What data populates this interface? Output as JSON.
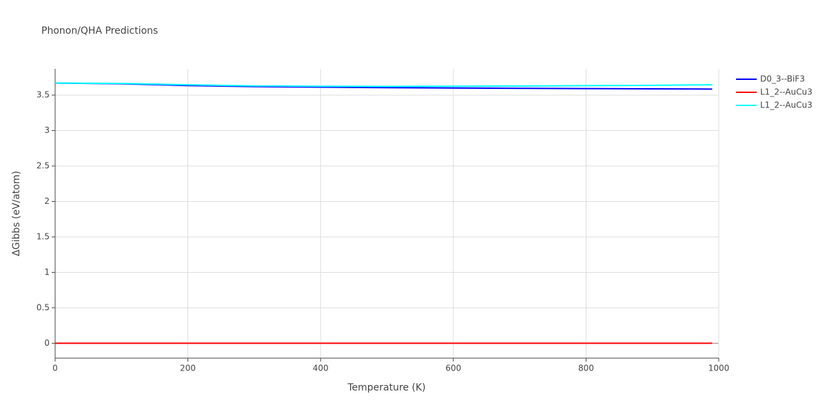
{
  "chart_data": {
    "type": "line",
    "title": "Phonon/QHA Predictions",
    "x_label": "Temperature (K)",
    "y_label": "ΔGibbs (eV/atom)",
    "x": [
      0,
      100,
      200,
      300,
      400,
      500,
      600,
      700,
      800,
      900,
      990
    ],
    "series": [
      {
        "name": "D0_3--BiF3",
        "color": "#0000ff",
        "values": [
          3.67,
          3.66,
          3.635,
          3.62,
          3.612,
          3.605,
          3.6,
          3.596,
          3.592,
          3.588,
          3.585
        ]
      },
      {
        "name": "L1_2--AuCu3",
        "color": "#ff0000",
        "values": [
          0,
          0,
          0,
          0,
          0,
          0,
          0,
          0,
          0,
          0,
          0
        ]
      },
      {
        "name": "L1_2--AuCu3",
        "color": "#00ffff",
        "values": [
          3.67,
          3.665,
          3.645,
          3.63,
          3.625,
          3.622,
          3.625,
          3.628,
          3.633,
          3.638,
          3.645
        ]
      }
    ],
    "xlim": [
      0,
      1000
    ],
    "xticks": [
      0,
      200,
      400,
      600,
      800,
      1000
    ],
    "ylim": [
      -0.21,
      3.87
    ],
    "yticks": [
      0,
      0.5,
      1,
      1.5,
      2,
      2.5,
      3,
      3.5
    ],
    "grid": true,
    "legend": "right"
  }
}
